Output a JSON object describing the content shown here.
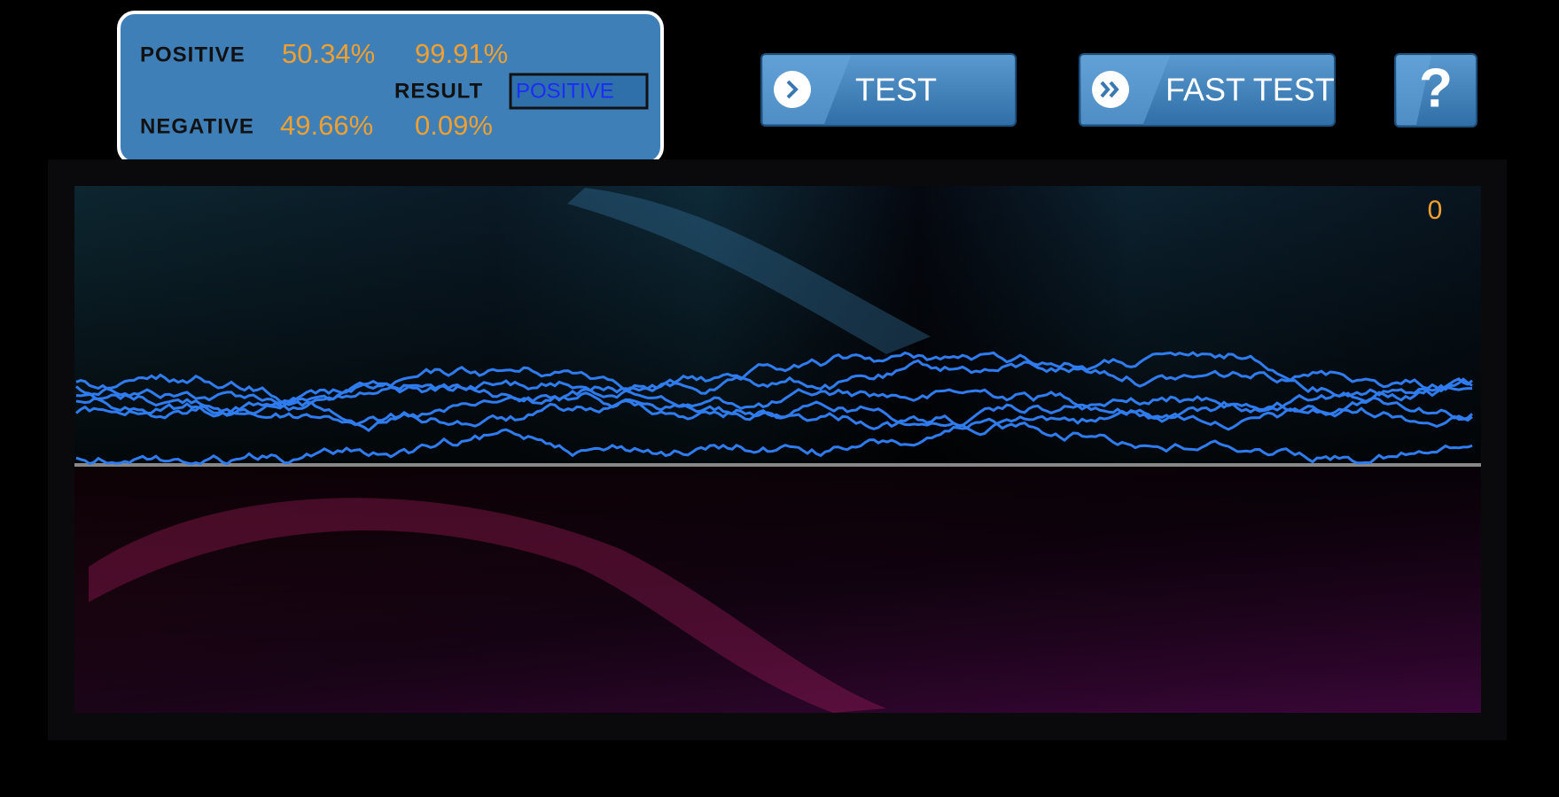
{
  "stats": {
    "positive_label": "POSITIVE",
    "positive_values": [
      "50.34%",
      "99.91%"
    ],
    "result_label": "RESULT",
    "result": "POSITIVE",
    "negative_label": "NEGATIVE",
    "negative_values": [
      "49.66%",
      "0.09%"
    ]
  },
  "buttons": [
    {
      "label": "TEST"
    },
    {
      "label": "FAST TEST"
    },
    {
      "label": "?"
    }
  ],
  "counter": 0
}
